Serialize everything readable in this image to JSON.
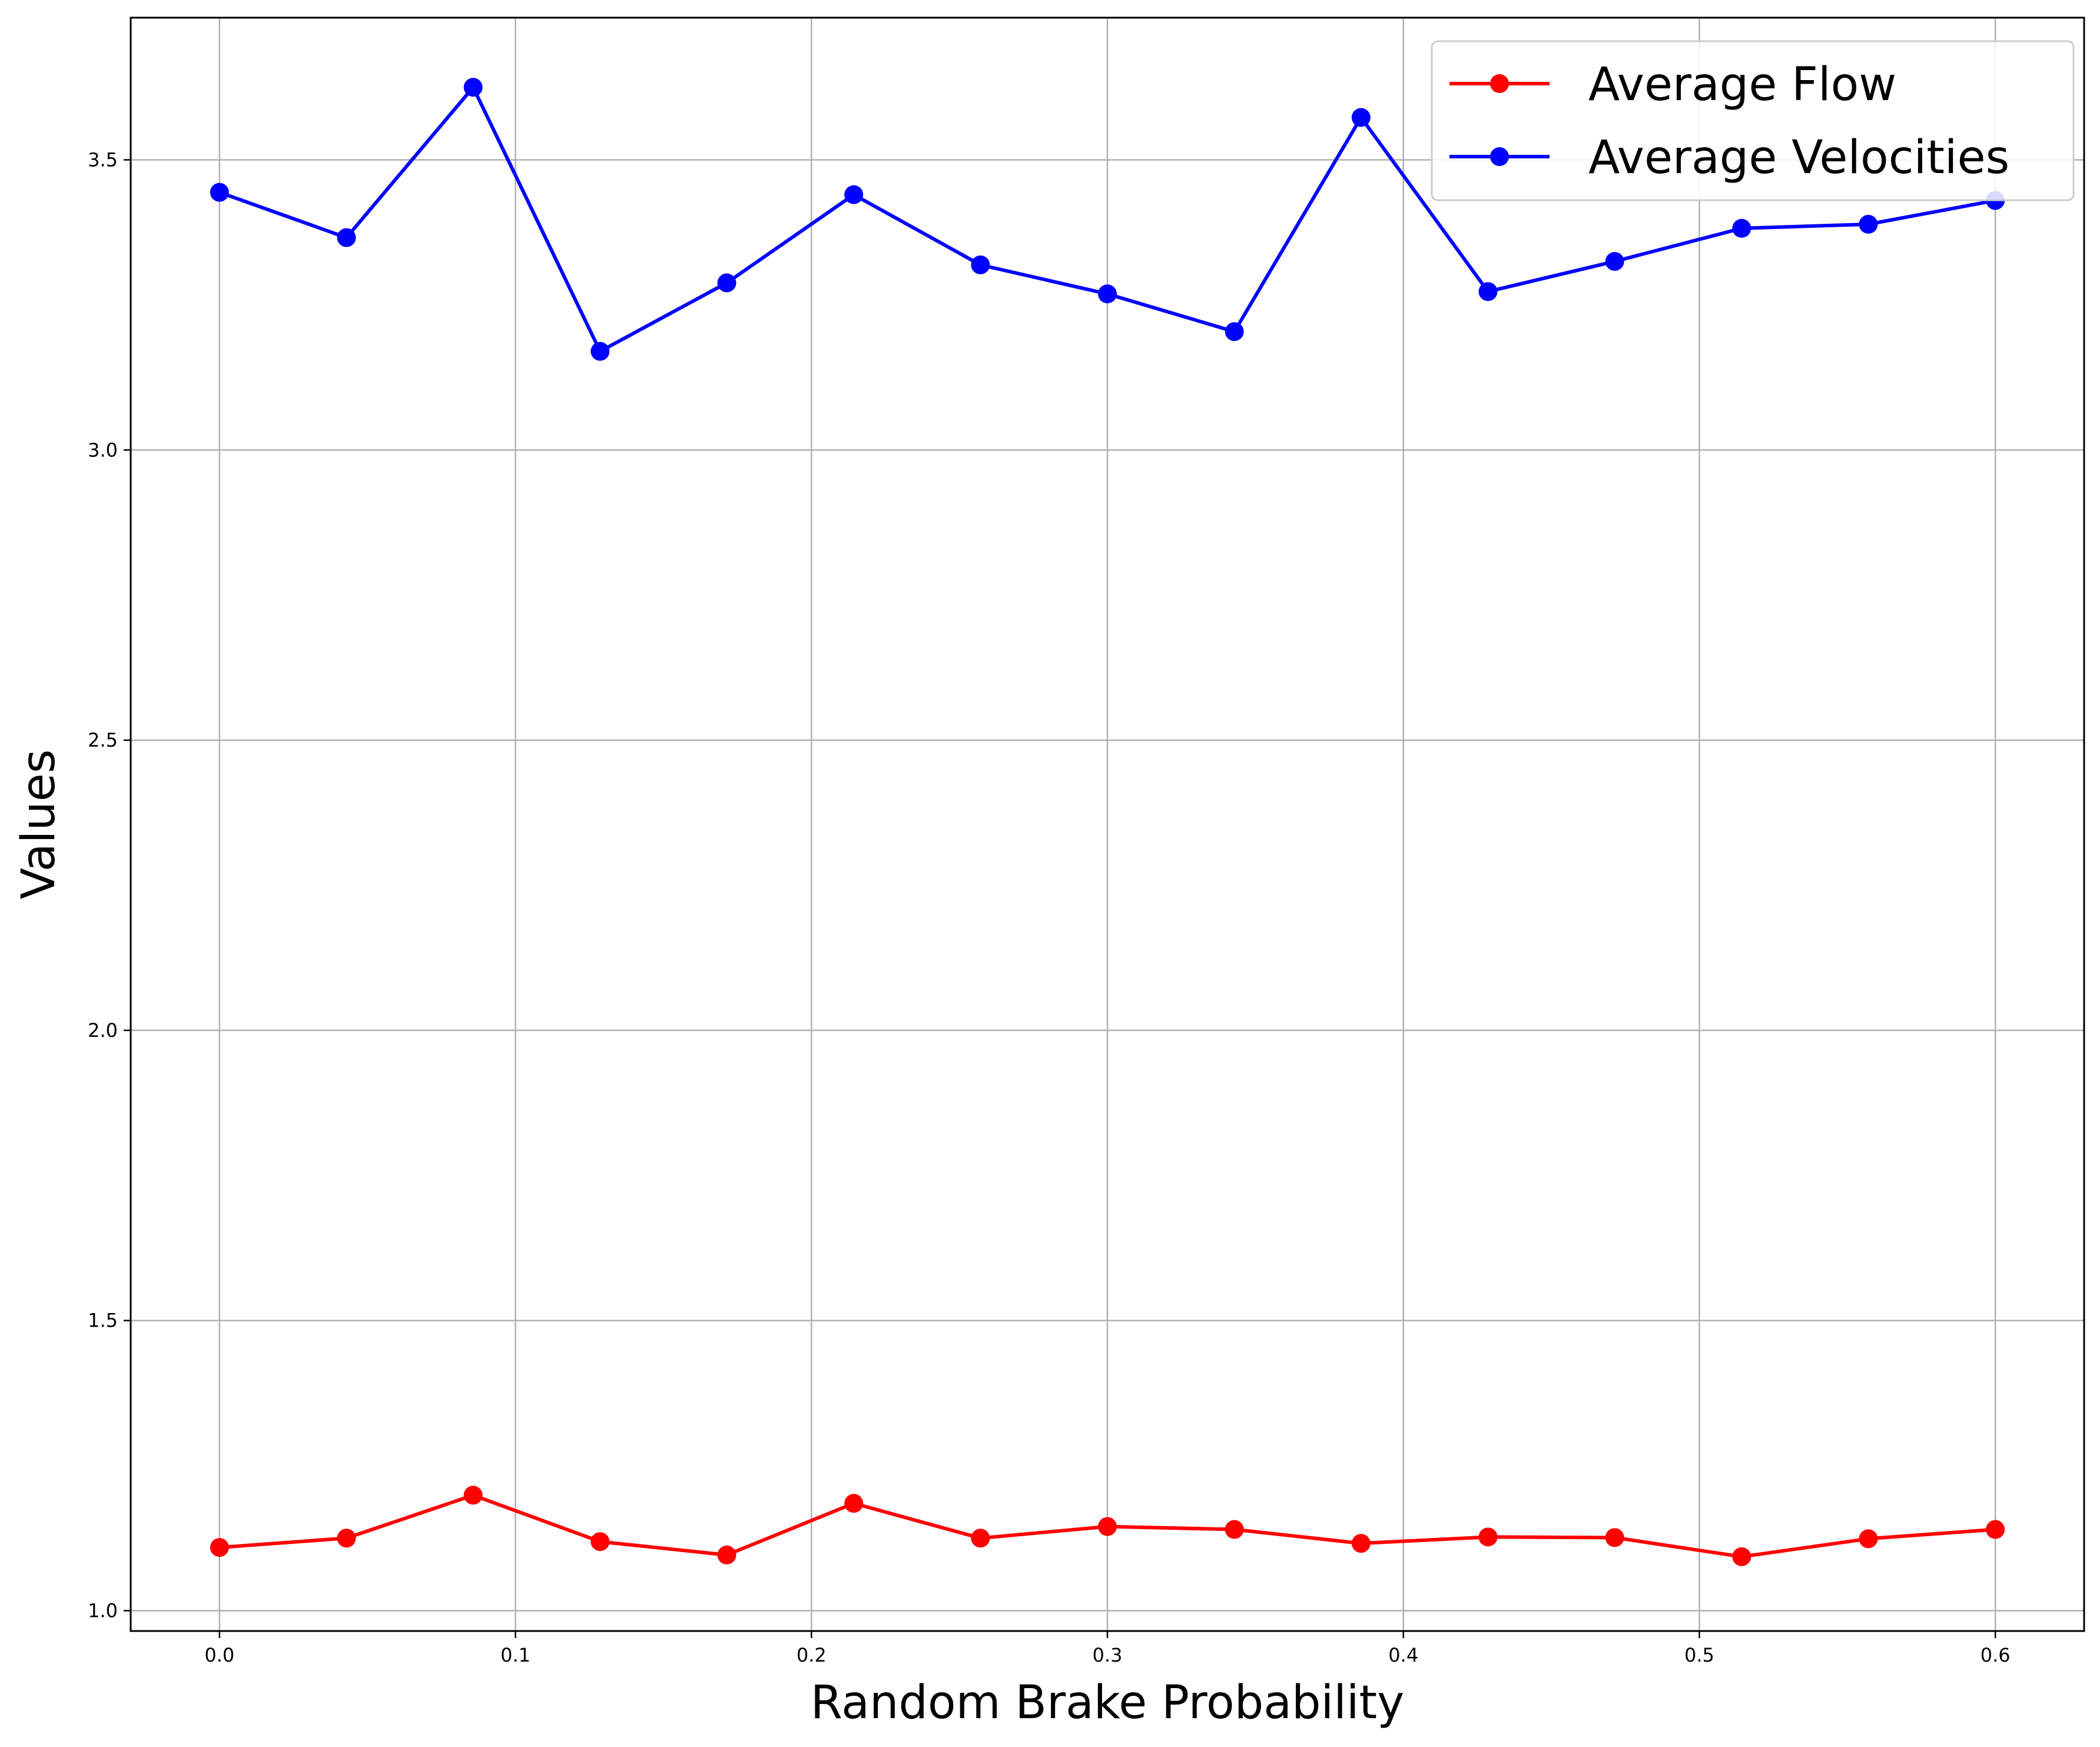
{
  "chart_data": {
    "type": "line",
    "title": "",
    "xlabel": "Random Brake Probability",
    "ylabel": "Values",
    "xlim": [
      -0.03,
      0.63
    ],
    "ylim": [
      0.965,
      3.745
    ],
    "xticks": [
      0.0,
      0.1,
      0.2,
      0.3,
      0.4,
      0.5,
      0.6
    ],
    "xtick_labels": [
      "0.0",
      "0.1",
      "0.2",
      "0.3",
      "0.4",
      "0.5",
      "0.6"
    ],
    "yticks": [
      1.0,
      1.5,
      2.0,
      2.5,
      3.0,
      3.5
    ],
    "ytick_labels": [
      "1.0",
      "1.5",
      "2.0",
      "2.5",
      "3.0",
      "3.5"
    ],
    "grid": true,
    "legend_position": "top-right",
    "x": [
      0.0,
      0.0429,
      0.0857,
      0.1286,
      0.1714,
      0.2143,
      0.2571,
      0.3,
      0.3429,
      0.3857,
      0.4286,
      0.4714,
      0.5143,
      0.5571,
      0.6
    ],
    "series": [
      {
        "name": "Average Flow",
        "color": "#ff0000",
        "values": [
          1.109,
          1.125,
          1.199,
          1.119,
          1.096,
          1.185,
          1.125,
          1.145,
          1.14,
          1.116,
          1.127,
          1.126,
          1.093,
          1.124,
          1.14
        ]
      },
      {
        "name": "Average Velocities",
        "color": "#0000ff",
        "values": [
          3.444,
          3.366,
          3.625,
          3.17,
          3.288,
          3.44,
          3.319,
          3.269,
          3.204,
          3.573,
          3.273,
          3.325,
          3.382,
          3.389,
          3.43
        ]
      }
    ]
  }
}
